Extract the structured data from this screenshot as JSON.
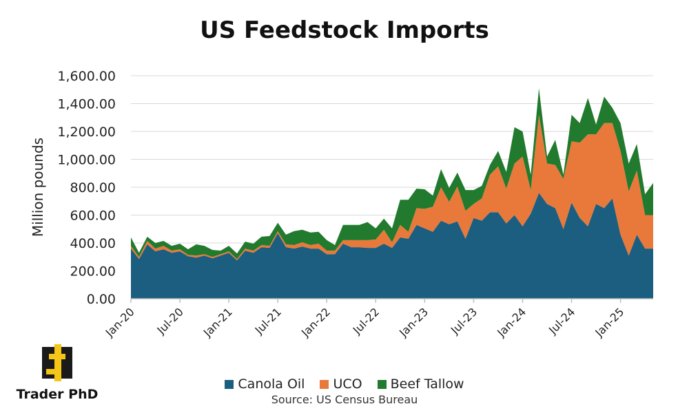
{
  "brand": {
    "name": "Trader PhD"
  },
  "source": "Source: US Census Bureau",
  "chart_data": {
    "type": "area",
    "stacked": true,
    "title": "US Feedstock Imports",
    "xlabel": "",
    "ylabel": "Million pounds",
    "ylim": [
      0,
      1600
    ],
    "yticks": [
      "0.00",
      "200.00",
      "400.00",
      "600.00",
      "800.00",
      "1,000.00",
      "1,200.00",
      "1,400.00",
      "1,600.00"
    ],
    "xtick_labels": [
      "Jan-20",
      "Jul-20",
      "Jan-21",
      "Jul-21",
      "Jan-22",
      "Jul-22",
      "Jan-23",
      "Jul-23",
      "Jan-24",
      "Jul-24",
      "Jan-25"
    ],
    "grid": true,
    "legend_position": "bottom",
    "colors": {
      "Canola Oil": "#1b5e80",
      "UCO": "#e8793a",
      "Beef Tallow": "#217a2e"
    },
    "x": [
      "Jan-20",
      "Feb-20",
      "Mar-20",
      "Apr-20",
      "May-20",
      "Jun-20",
      "Jul-20",
      "Aug-20",
      "Sep-20",
      "Oct-20",
      "Nov-20",
      "Dec-20",
      "Jan-21",
      "Feb-21",
      "Mar-21",
      "Apr-21",
      "May-21",
      "Jun-21",
      "Jul-21",
      "Aug-21",
      "Sep-21",
      "Oct-21",
      "Nov-21",
      "Dec-21",
      "Jan-22",
      "Feb-22",
      "Mar-22",
      "Apr-22",
      "May-22",
      "Jun-22",
      "Jul-22",
      "Aug-22",
      "Sep-22",
      "Oct-22",
      "Nov-22",
      "Dec-22",
      "Jan-23",
      "Feb-23",
      "Mar-23",
      "Apr-23",
      "May-23",
      "Jun-23",
      "Jul-23",
      "Aug-23",
      "Sep-23",
      "Oct-23",
      "Nov-23",
      "Dec-23",
      "Jan-24",
      "Feb-24",
      "Mar-24",
      "Apr-24",
      "May-24",
      "Jun-24",
      "Jul-24",
      "Aug-24",
      "Sep-24",
      "Oct-24",
      "Nov-24",
      "Dec-24",
      "Jan-25",
      "Feb-25",
      "Mar-25",
      "Apr-25",
      "May-25"
    ],
    "series": [
      {
        "name": "Canola Oil",
        "values": [
          360,
          285,
          390,
          340,
          355,
          330,
          340,
          305,
          295,
          310,
          290,
          310,
          330,
          275,
          345,
          330,
          370,
          365,
          470,
          370,
          360,
          375,
          360,
          360,
          320,
          320,
          395,
          370,
          370,
          365,
          365,
          395,
          365,
          440,
          430,
          530,
          505,
          480,
          560,
          535,
          555,
          430,
          580,
          560,
          620,
          620,
          540,
          600,
          520,
          610,
          760,
          680,
          650,
          500,
          690,
          580,
          520,
          680,
          650,
          720,
          460,
          310,
          460,
          360,
          360
        ]
      },
      {
        "name": "UCO",
        "values": [
          20,
          15,
          25,
          20,
          25,
          15,
          15,
          10,
          15,
          10,
          10,
          10,
          10,
          10,
          15,
          15,
          15,
          15,
          15,
          20,
          25,
          30,
          25,
          35,
          25,
          25,
          25,
          50,
          50,
          55,
          60,
          100,
          40,
          90,
          50,
          120,
          140,
          180,
          240,
          160,
          250,
          200,
          100,
          160,
          270,
          330,
          250,
          370,
          500,
          170,
          560,
          290,
          310,
          360,
          440,
          540,
          660,
          500,
          610,
          540,
          600,
          460,
          460,
          240,
          240
        ]
      },
      {
        "name": "Beef Tallow",
        "values": [
          60,
          30,
          30,
          40,
          35,
          35,
          40,
          40,
          80,
          60,
          50,
          25,
          40,
          40,
          50,
          50,
          60,
          70,
          60,
          70,
          100,
          90,
          90,
          85,
          75,
          40,
          110,
          110,
          110,
          130,
          80,
          80,
          100,
          180,
          230,
          140,
          140,
          80,
          130,
          100,
          100,
          150,
          100,
          90,
          70,
          110,
          120,
          260,
          180,
          110,
          190,
          50,
          180,
          30,
          190,
          140,
          260,
          70,
          190,
          110,
          200,
          200,
          190,
          150,
          230
        ]
      }
    ]
  }
}
